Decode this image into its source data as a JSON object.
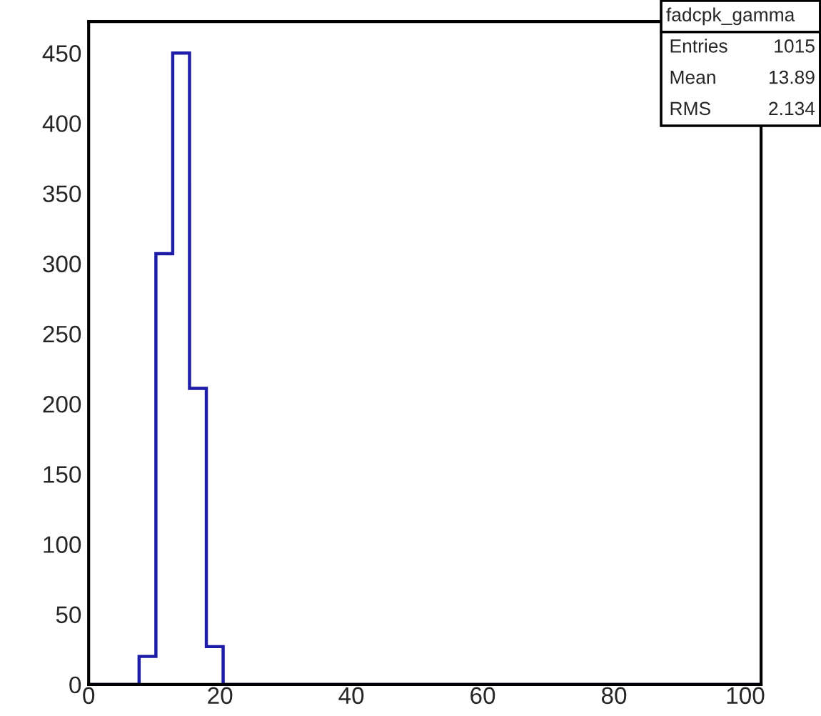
{
  "chart_data": {
    "type": "histogram",
    "bins": [
      0,
      2.56,
      5.12,
      7.68,
      10.24,
      12.8,
      15.36,
      17.92,
      20.48,
      23.04,
      25.6,
      28.16,
      30.72,
      33.28,
      35.84,
      38.4,
      40.96,
      43.52,
      46.08,
      48.64,
      51.2,
      53.76,
      56.32,
      58.88,
      61.44,
      64,
      66.56,
      69.12,
      71.68,
      74.24,
      76.8,
      79.36,
      81.92,
      84.48,
      87.04,
      89.6,
      92.16,
      94.72,
      97.28,
      99.84,
      102.4
    ],
    "values": [
      0,
      0,
      0,
      20,
      307,
      450,
      211,
      27,
      0,
      0,
      0,
      0,
      0,
      0,
      0,
      0,
      0,
      0,
      0,
      0,
      0,
      0,
      0,
      0,
      0,
      0,
      0,
      0,
      0,
      0,
      0,
      0,
      0,
      0,
      0,
      0,
      0,
      0,
      0,
      0
    ],
    "color": "#1c1ca6",
    "xlim": [
      0,
      102.4
    ],
    "xticks": [
      0,
      20,
      40,
      60,
      80,
      100
    ],
    "ylim": [
      0,
      472.5
    ],
    "yticks": [
      0,
      50,
      100,
      150,
      200,
      250,
      300,
      350,
      400,
      450
    ],
    "grid": false,
    "legend": false,
    "annotations": [
      "fadcpk_gamma",
      "Entries",
      "1015",
      "Mean",
      "13.89",
      "RMS",
      "2.134"
    ]
  }
}
